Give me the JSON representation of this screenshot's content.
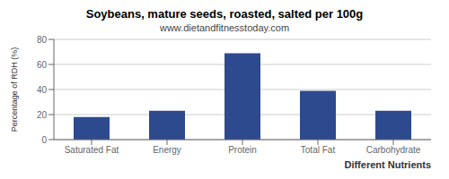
{
  "chart_data": {
    "type": "bar",
    "title": "Soybeans, mature seeds, roasted, salted per 100g",
    "subtitle": "www.dietandfitnesstoday.com",
    "categories": [
      "Saturated Fat",
      "Energy",
      "Protein",
      "Total Fat",
      "Carbohydrate"
    ],
    "values": [
      18,
      23,
      69,
      39,
      23
    ],
    "color": "#2e4a8e",
    "xlabel": "Different Nutrients",
    "ylabel": "Percentage of RDH (%)",
    "ylim": [
      0,
      80
    ],
    "yticks": [
      0,
      20,
      40,
      60,
      80
    ],
    "grid": true
  }
}
